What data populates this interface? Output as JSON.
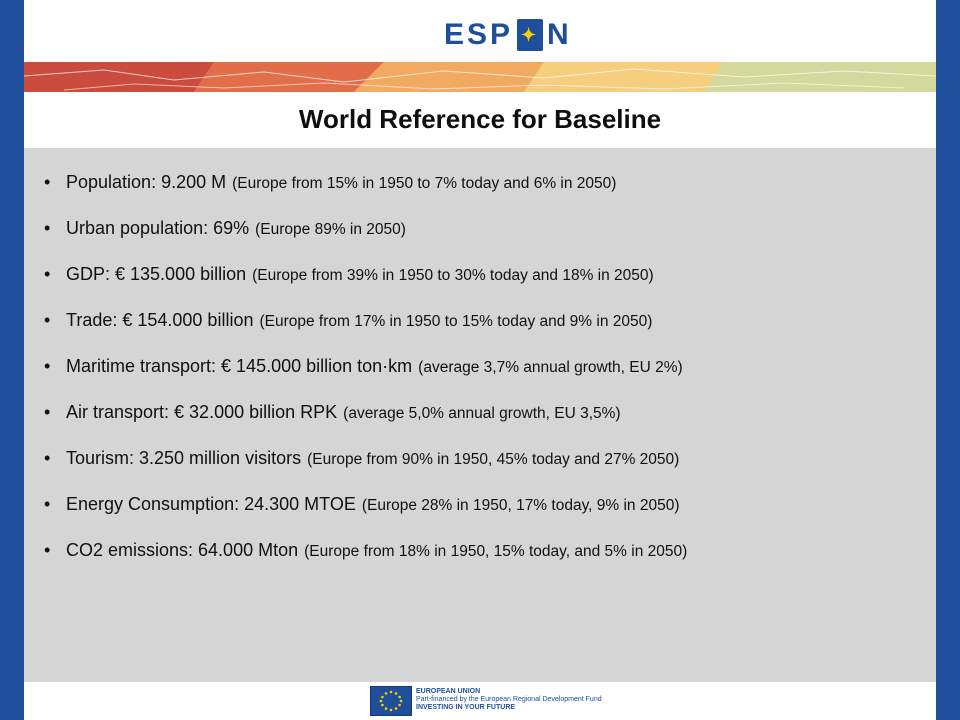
{
  "colors": {
    "frame_blue": "#1f4e9a",
    "content_gray": "#d5d5d5",
    "logo_blue": "#1f4e9a",
    "map_reds": [
      "#c83a2a",
      "#e1572d",
      "#f29a3c",
      "#f8c55a",
      "#c9d27a"
    ]
  },
  "header": {
    "logo_left": "ESP",
    "logo_right": "N",
    "logo_mark": "eu-stars-icon"
  },
  "title": "World Reference for Baseline",
  "bullets": [
    {
      "main": "Population: 9.200 M",
      "note": "(Europe from 15% in 1950 to 7% today and 6% in 2050)"
    },
    {
      "main": "Urban population: 69%",
      "note": "(Europe 89% in 2050)"
    },
    {
      "main": "GDP: € 135.000 billion",
      "note": "(Europe from 39% in 1950 to 30% today and 18% in 2050)"
    },
    {
      "main": "Trade: € 154.000 billion",
      "note": "(Europe from 17% in 1950 to 15% today and 9% in 2050)"
    },
    {
      "main": "Maritime transport: € 145.000 billion ton·km",
      "note": "(average 3,7% annual growth, EU 2%)"
    },
    {
      "main": "Air transport: € 32.000 billion RPK",
      "note": "(average 5,0% annual growth, EU 3,5%)"
    },
    {
      "main": "Tourism: 3.250 million visitors",
      "note": "(Europe from 90% in 1950, 45% today and 27% 2050)"
    },
    {
      "main": "Energy Consumption: 24.300 MTOE",
      "note": "(Europe 28% in 1950, 17% today, 9% in 2050)"
    },
    {
      "main": "CO2 emissions: 64.000 Mton",
      "note": "(Europe from 18% in 1950, 15% today, and 5% in 2050)"
    }
  ],
  "footer": {
    "line1": "EUROPEAN UNION",
    "line2": "Part-financed by the European Regional Development Fund",
    "line3": "INVESTING IN YOUR FUTURE"
  }
}
